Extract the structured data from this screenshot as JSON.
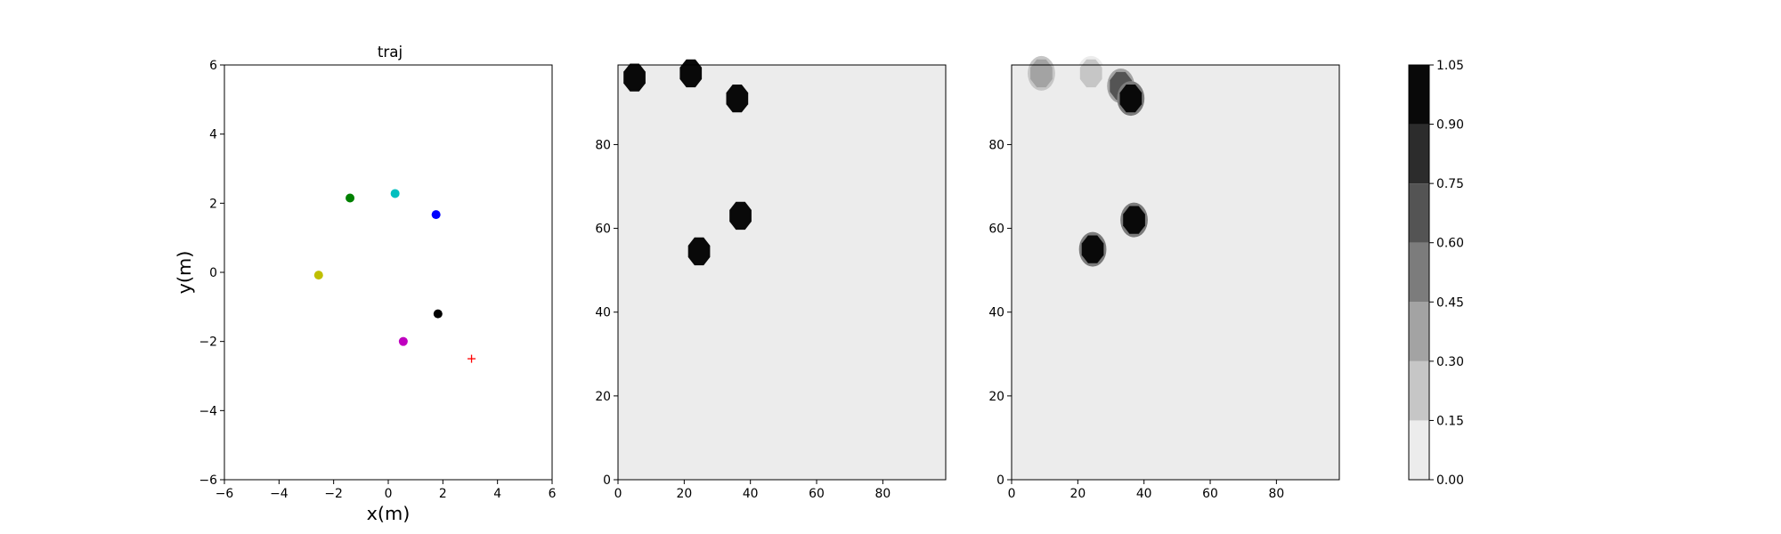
{
  "chart_data": [
    {
      "type": "scatter",
      "title": "traj",
      "xlabel": "x(m)",
      "ylabel": "y(m)",
      "xlim": [
        -6,
        6
      ],
      "ylim": [
        -6,
        6
      ],
      "xticks": [
        "−6",
        "−4",
        "−2",
        "0",
        "2",
        "4",
        "6"
      ],
      "yticks": [
        "−6",
        "−4",
        "−2",
        "0",
        "2",
        "4",
        "6"
      ],
      "grid": false,
      "points": [
        {
          "x": -1.4,
          "y": 2.15,
          "color": "#008000",
          "marker": "circle"
        },
        {
          "x": 0.25,
          "y": 2.28,
          "color": "#00bfbf",
          "marker": "circle"
        },
        {
          "x": 1.75,
          "y": 1.67,
          "color": "#0000ff",
          "marker": "circle"
        },
        {
          "x": -2.55,
          "y": -0.08,
          "color": "#bfbf00",
          "marker": "circle"
        },
        {
          "x": 1.82,
          "y": -1.2,
          "color": "#000000",
          "marker": "circle"
        },
        {
          "x": 0.55,
          "y": -2.0,
          "color": "#bf00bf",
          "marker": "circle"
        },
        {
          "x": 3.05,
          "y": -2.5,
          "color": "#ff0000",
          "marker": "plus"
        }
      ]
    },
    {
      "type": "heatmap",
      "title": "",
      "xlim": [
        0,
        99
      ],
      "ylim": [
        0,
        99
      ],
      "xticks": [
        "0",
        "20",
        "40",
        "60",
        "80"
      ],
      "yticks": [
        "0",
        "20",
        "40",
        "60",
        "80"
      ],
      "background_level": 0.0,
      "blobs": [
        {
          "x": 5,
          "y": 96,
          "level": 1.0
        },
        {
          "x": 22,
          "y": 97,
          "level": 1.0
        },
        {
          "x": 36,
          "y": 91,
          "level": 1.0
        },
        {
          "x": 37,
          "y": 63,
          "level": 1.0
        },
        {
          "x": 24.5,
          "y": 54.5,
          "level": 1.0
        }
      ]
    },
    {
      "type": "heatmap",
      "title": "",
      "xlim": [
        0,
        99
      ],
      "ylim": [
        0,
        99
      ],
      "xticks": [
        "0",
        "20",
        "40",
        "60",
        "80"
      ],
      "yticks": [
        "0",
        "20",
        "40",
        "60",
        "80"
      ],
      "background_level": 0.0,
      "blobs": [
        {
          "x": 9,
          "y": 97,
          "level": 0.4
        },
        {
          "x": 24,
          "y": 97,
          "level": 0.2
        },
        {
          "x": 33,
          "y": 94,
          "level": 0.75
        },
        {
          "x": 36,
          "y": 91,
          "level": 1.0
        },
        {
          "x": 37,
          "y": 62,
          "level": 1.0
        },
        {
          "x": 24.5,
          "y": 55,
          "level": 1.0
        }
      ]
    }
  ],
  "colorbar": {
    "ticks": [
      "0.00",
      "0.15",
      "0.30",
      "0.45",
      "0.60",
      "0.75",
      "0.90",
      "1.05"
    ],
    "levels": [
      0.0,
      0.15,
      0.3,
      0.45,
      0.6,
      0.75,
      0.9,
      1.05
    ],
    "colors": [
      "#ececec",
      "#c6c6c6",
      "#a3a3a3",
      "#7c7c7c",
      "#545454",
      "#2c2c2c",
      "#090909"
    ]
  }
}
